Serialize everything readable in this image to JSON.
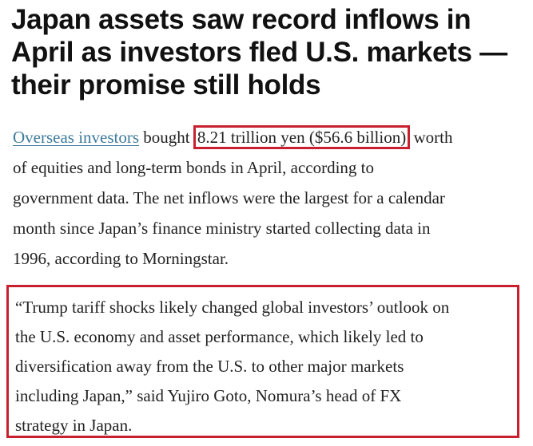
{
  "headline": {
    "lines": [
      "Japan assets saw record inflows in",
      "April as investors fled U.S. markets —",
      "their promise still holds"
    ]
  },
  "paragraph": {
    "link_text": "Overseas investors",
    "line1_mid": " bought ",
    "highlight": "8.21 trillion yen ($56.6 billion)",
    "line1_end": " worth",
    "lines": [
      "of equities and long-term bonds in April, according to",
      "government data. The net inflows were the largest for a calendar",
      "month since Japan’s finance ministry started collecting data in",
      "1996, according to Morningstar."
    ]
  },
  "quote": {
    "lines": [
      "“Trump tariff shocks likely changed global investors’ outlook on",
      "the U.S. economy and asset performance, which likely led to",
      "diversification away from the U.S. to other major markets",
      "including Japan,” said Yujiro Goto, Nomura’s head of FX",
      "strategy in Japan."
    ]
  },
  "colors": {
    "highlight_border": "#c8202f",
    "link": "#3c7a9a"
  }
}
